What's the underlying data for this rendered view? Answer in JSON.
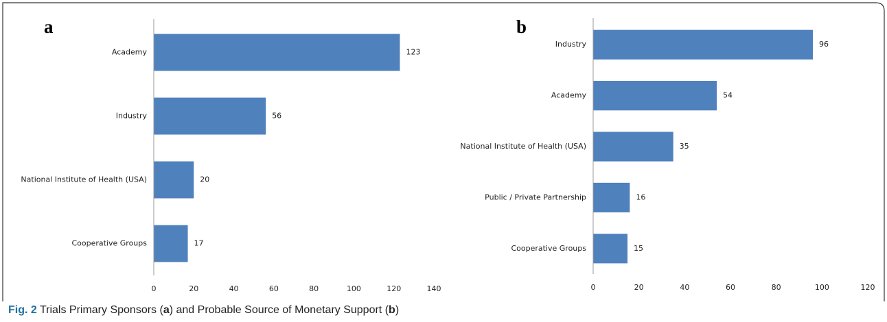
{
  "chart_data": [
    {
      "type": "bar",
      "orientation": "horizontal",
      "panel": "a",
      "categories": [
        "Academy",
        "Industry",
        "National Institute of Health (USA)",
        "Cooperative Groups"
      ],
      "values": [
        123,
        56,
        20,
        17
      ],
      "color": "#4f81bd",
      "xlim": [
        0,
        140
      ],
      "xticks": [
        0,
        20,
        40,
        60,
        80,
        100,
        120,
        140
      ],
      "grid": false
    },
    {
      "type": "bar",
      "orientation": "horizontal",
      "panel": "b",
      "categories": [
        "Industry",
        "Academy",
        "National Institute of Health (USA)",
        "Public / Private Partnership",
        "Cooperative Groups"
      ],
      "values": [
        96,
        54,
        35,
        16,
        15
      ],
      "color": "#4f81bd",
      "xlim": [
        0,
        120
      ],
      "xticks": [
        0,
        20,
        40,
        60,
        80,
        100,
        120
      ],
      "grid": false
    }
  ],
  "caption": {
    "label": "Fig. 2",
    "parts": [
      "Trials Primary Sponsors (",
      "a",
      ") and Probable Source of Monetary Support (",
      "b",
      ")"
    ]
  }
}
